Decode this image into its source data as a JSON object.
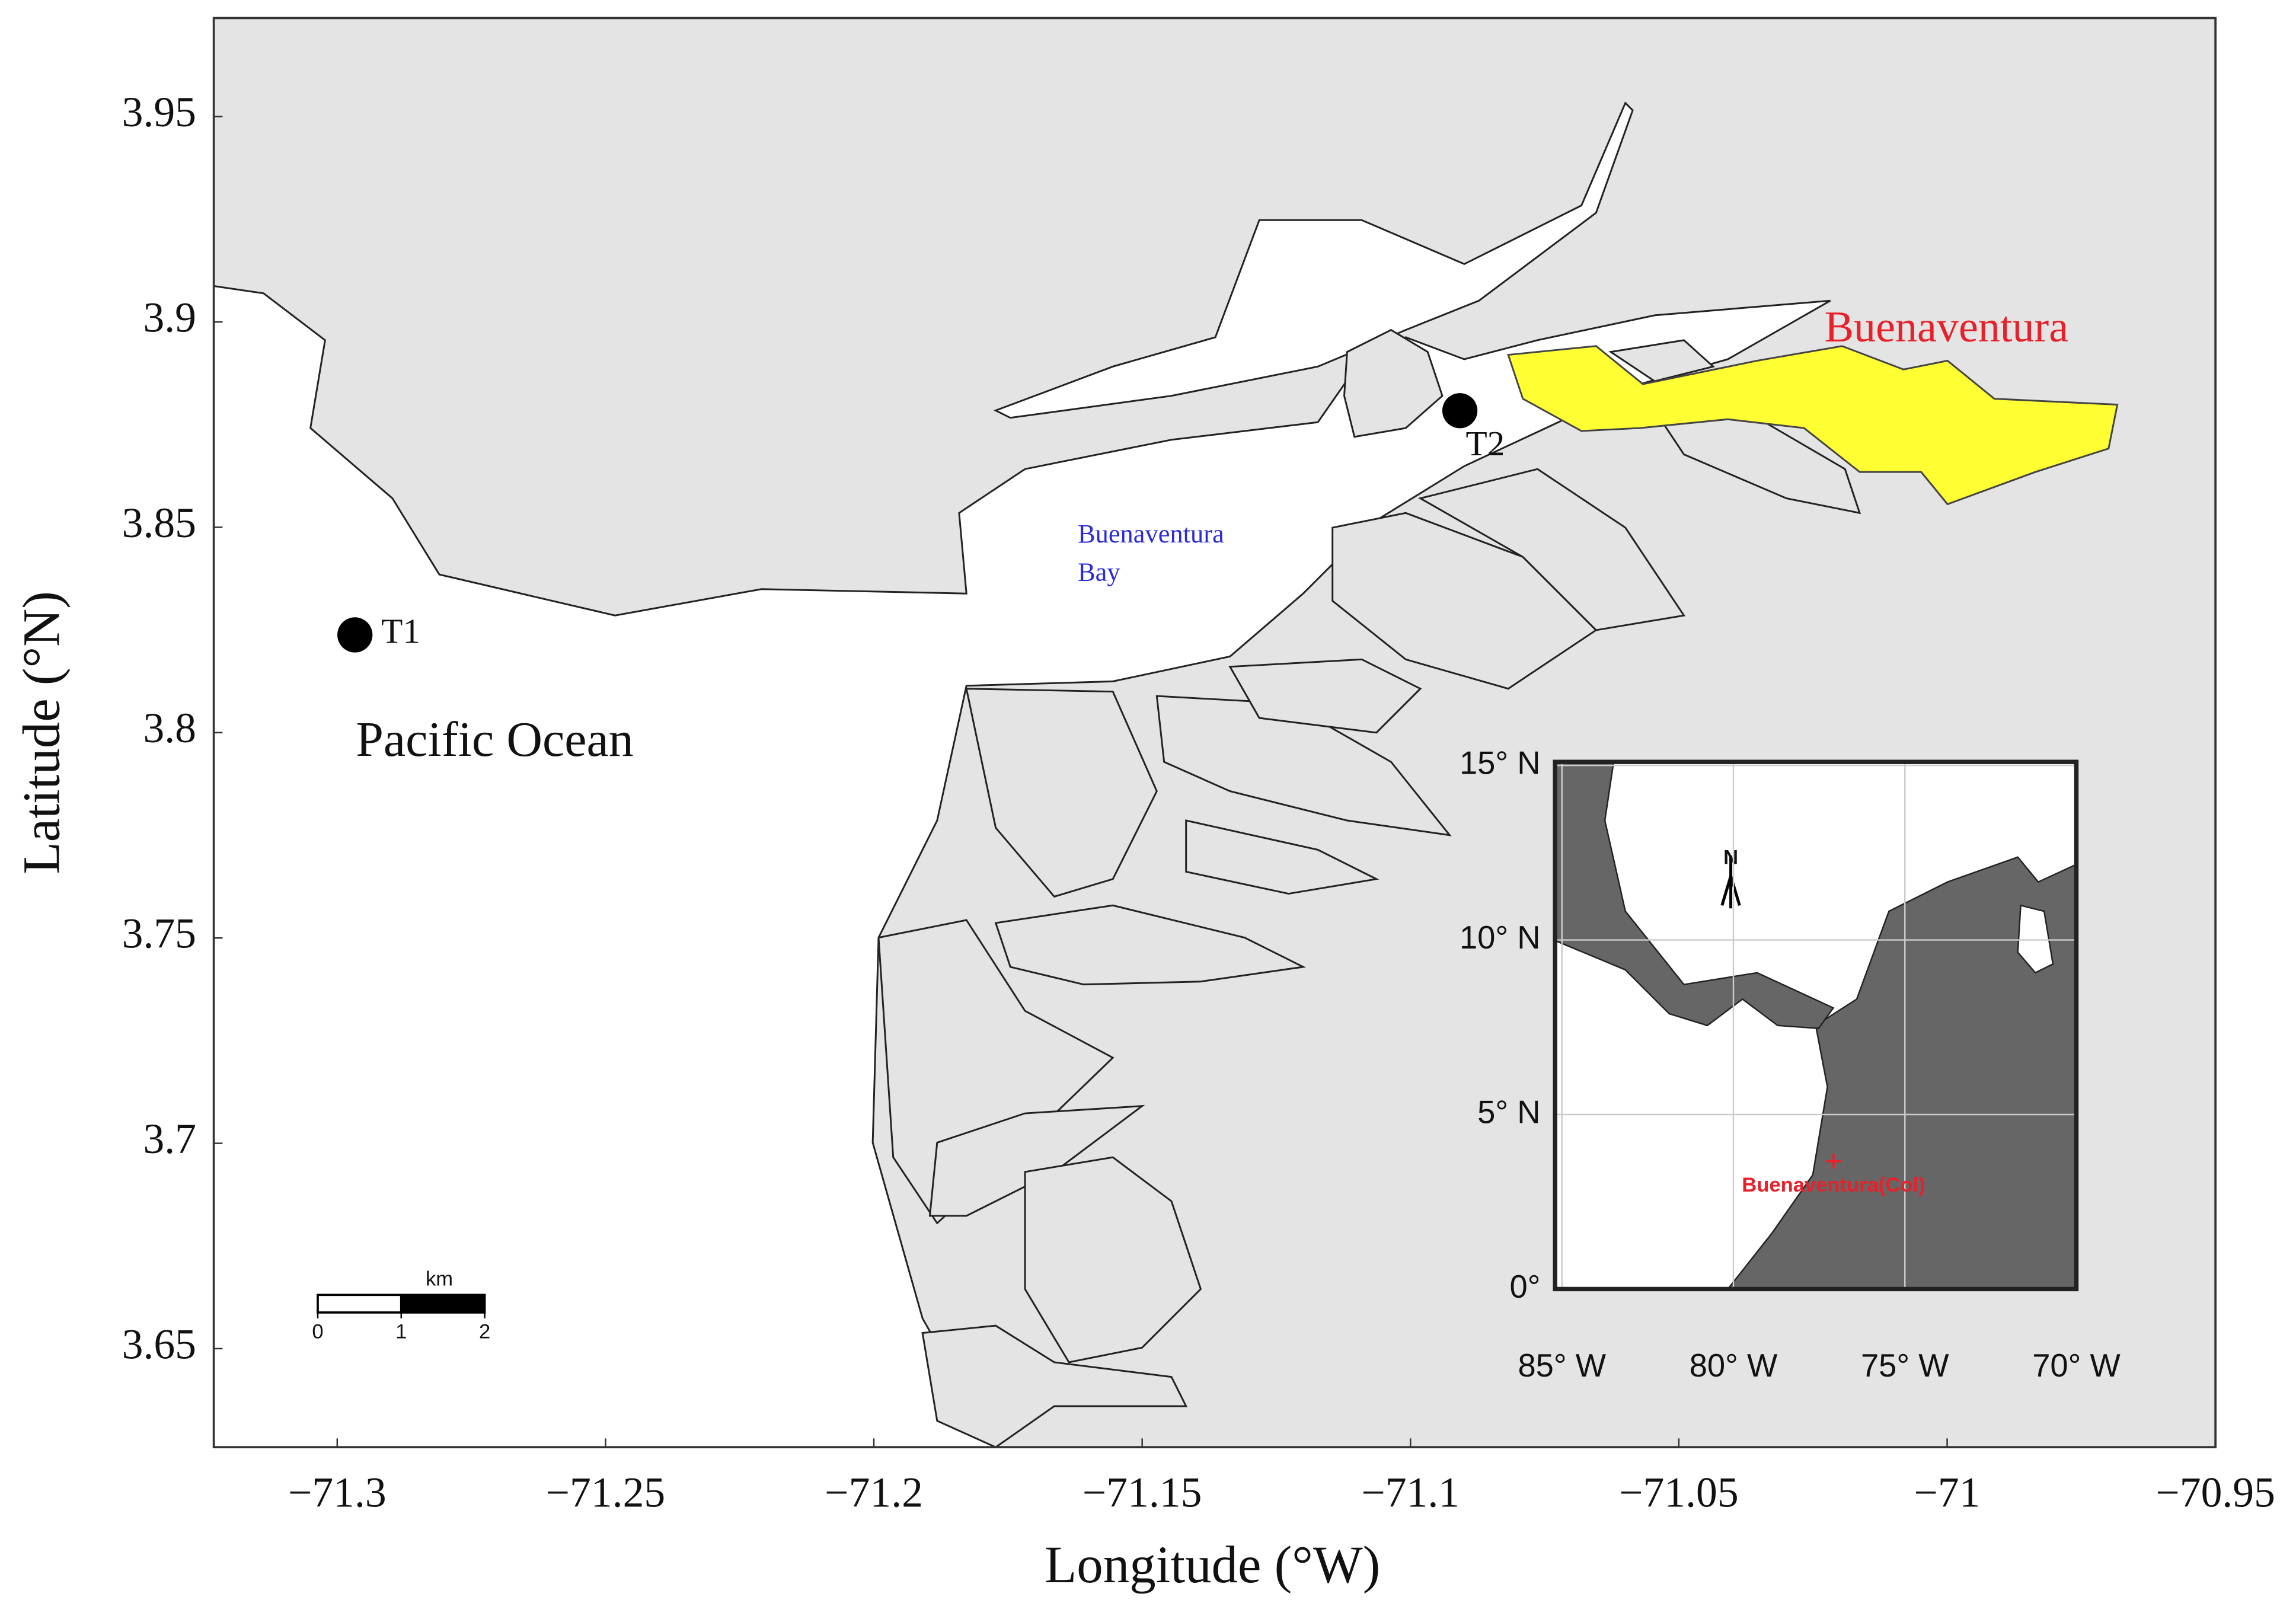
{
  "map": {
    "xlabel": "Longitude (°W)",
    "ylabel": "Latitude (°N)",
    "xlim": [
      -71.323,
      -70.95
    ],
    "ylim": [
      3.626,
      3.974
    ],
    "xticks": [
      {
        "value": -71.3,
        "label": "−71.3"
      },
      {
        "value": -71.25,
        "label": "−71.25"
      },
      {
        "value": -71.2,
        "label": "−71.2"
      },
      {
        "value": -71.15,
        "label": "−71.15"
      },
      {
        "value": -71.1,
        "label": "−71.1"
      },
      {
        "value": -71.05,
        "label": "−71.05"
      },
      {
        "value": -71,
        "label": "−71"
      },
      {
        "value": -70.95,
        "label": "−70.95"
      }
    ],
    "yticks": [
      3.65,
      3.7,
      3.75,
      3.8,
      3.85,
      3.9,
      3.95
    ],
    "stations": [
      {
        "name": "T1",
        "lon": -71.2967,
        "lat": 3.8238
      },
      {
        "name": "T2",
        "lon": -71.0908,
        "lat": 3.8784
      }
    ],
    "labels": {
      "ocean": "Pacific Ocean",
      "bay": [
        "Buenaventura",
        "Bay"
      ],
      "city": "Buenaventura"
    },
    "scale_bar": {
      "unit": "km",
      "ticks": [
        0,
        1,
        2
      ]
    }
  },
  "inset": {
    "xlim": [
      -85.2,
      -70
    ],
    "ylim": [
      0,
      15.1
    ],
    "xticks": [
      {
        "value": -85,
        "label": "85° W"
      },
      {
        "value": -80,
        "label": "80° W"
      },
      {
        "value": -75,
        "label": "75° W"
      },
      {
        "value": -70,
        "label": "70° W"
      }
    ],
    "yticks": [
      {
        "value": 0,
        "label": "0°"
      },
      {
        "value": 5,
        "label": "5° N"
      },
      {
        "value": 10,
        "label": "10° N"
      },
      {
        "value": 15,
        "label": "15° N"
      }
    ],
    "north": "N",
    "city": {
      "name": "Buenaventura(Col)",
      "lon": -77.08,
      "lat": 3.66
    }
  }
}
